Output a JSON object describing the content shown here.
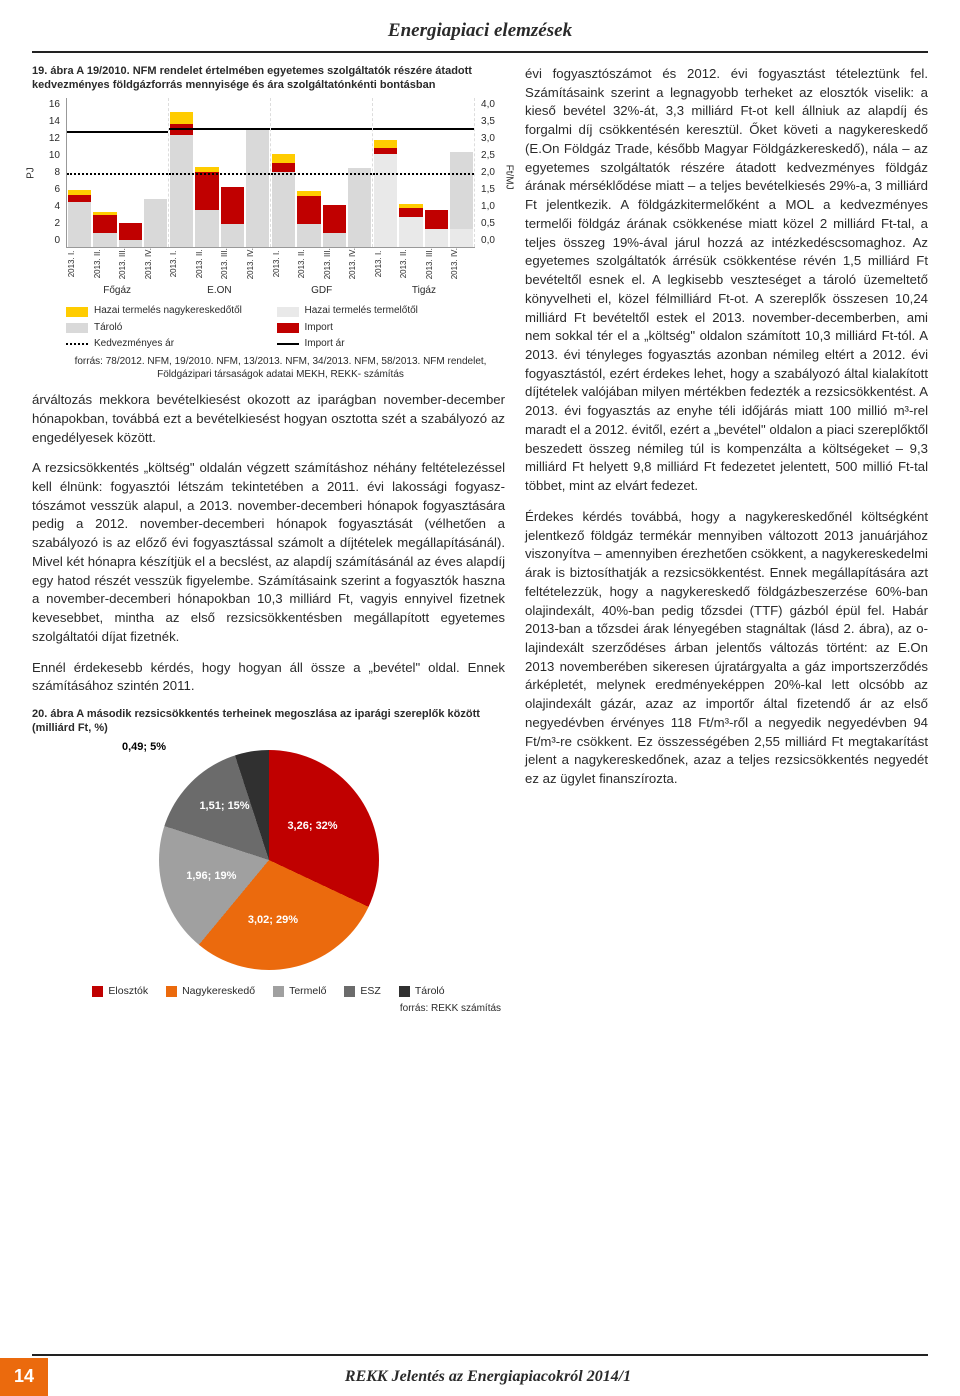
{
  "header": "Energiapiaci elemzések",
  "fig1": {
    "caption": "19. ábra A 19/2010. NFM rendelet értelmében egyetemes szolgáltatók részére átadott kedvezményes földgázforrás mennyisége és ára szolgáltatónkénti bontásban",
    "ylab_left": "PJ",
    "ylab_right": "Ft/MJ",
    "yticks_left": [
      "16",
      "14",
      "12",
      "10",
      "8",
      "6",
      "4",
      "2",
      "0"
    ],
    "yticks_right": [
      "4,0",
      "3,5",
      "3,0",
      "2,5",
      "2,0",
      "1,5",
      "1,0",
      "0,5",
      "0,0"
    ],
    "y_max_left": 16,
    "groups": [
      {
        "name": "Főgáz",
        "quarters": [
          "2013. I.",
          "2013. II.",
          "2013. III.",
          "2013. IV."
        ],
        "stacks": [
          {
            "segs": [
              {
                "c": "#d9d9d9",
                "v": 4.8
              },
              {
                "c": "#c00000",
                "v": 0.8
              },
              {
                "c": "#ffcc00",
                "v": 0.5
              }
            ]
          },
          {
            "segs": [
              {
                "c": "#d9d9d9",
                "v": 1.5
              },
              {
                "c": "#c00000",
                "v": 2.0
              },
              {
                "c": "#ffcc00",
                "v": 0.3
              }
            ]
          },
          {
            "segs": [
              {
                "c": "#d9d9d9",
                "v": 0.8
              },
              {
                "c": "#c00000",
                "v": 1.8
              },
              {
                "c": "#ffcc00",
                "v": 0.0
              }
            ]
          },
          {
            "segs": [
              {
                "c": "#d9d9d9",
                "v": 5.2
              },
              {
                "c": "#c00000",
                "v": 0.0
              },
              {
                "c": "#ffcc00",
                "v": 0.0
              }
            ]
          }
        ],
        "line": [
          3.6,
          3.1,
          2.8,
          3.0
        ],
        "dot": [
          2.1,
          2.0,
          1.9,
          2.0
        ]
      },
      {
        "name": "E.ON",
        "quarters": [
          "2013. I.",
          "2013. II.",
          "2013. III.",
          "2013. IV."
        ],
        "stacks": [
          {
            "segs": [
              {
                "c": "#d9d9d9",
                "v": 12.0
              },
              {
                "c": "#c00000",
                "v": 1.2
              },
              {
                "c": "#ffcc00",
                "v": 1.2
              }
            ]
          },
          {
            "segs": [
              {
                "c": "#d9d9d9",
                "v": 4.0
              },
              {
                "c": "#c00000",
                "v": 4.0
              },
              {
                "c": "#ffcc00",
                "v": 0.6
              }
            ]
          },
          {
            "segs": [
              {
                "c": "#d9d9d9",
                "v": 2.5
              },
              {
                "c": "#c00000",
                "v": 4.0
              },
              {
                "c": "#ffcc00",
                "v": 0.0
              }
            ]
          },
          {
            "segs": [
              {
                "c": "#d9d9d9",
                "v": 12.5
              },
              {
                "c": "#c00000",
                "v": 0.0
              },
              {
                "c": "#ffcc00",
                "v": 0.0
              }
            ]
          }
        ],
        "line": [
          3.7,
          3.2,
          2.9,
          3.1
        ],
        "dot": [
          2.1,
          2.0,
          1.9,
          2.0
        ]
      },
      {
        "name": "GDF",
        "quarters": [
          "2013. I.",
          "2013. II.",
          "2013. III.",
          "2013. IV."
        ],
        "stacks": [
          {
            "segs": [
              {
                "c": "#d9d9d9",
                "v": 8.0
              },
              {
                "c": "#c00000",
                "v": 1.0
              },
              {
                "c": "#ffcc00",
                "v": 1.0
              }
            ]
          },
          {
            "segs": [
              {
                "c": "#d9d9d9",
                "v": 2.5
              },
              {
                "c": "#c00000",
                "v": 3.0
              },
              {
                "c": "#ffcc00",
                "v": 0.5
              }
            ]
          },
          {
            "segs": [
              {
                "c": "#d9d9d9",
                "v": 1.5
              },
              {
                "c": "#c00000",
                "v": 3.0
              },
              {
                "c": "#ffcc00",
                "v": 0.0
              }
            ]
          },
          {
            "segs": [
              {
                "c": "#d9d9d9",
                "v": 8.5
              },
              {
                "c": "#c00000",
                "v": 0.0
              },
              {
                "c": "#ffcc00",
                "v": 0.0
              }
            ]
          }
        ],
        "line": [
          3.7,
          3.2,
          2.9,
          3.1
        ],
        "dot": [
          2.1,
          2.0,
          1.9,
          2.0
        ]
      },
      {
        "name": "Tigáz",
        "quarters": [
          "2013. I.",
          "2013. II.",
          "2013. III.",
          "2013. IV."
        ],
        "stacks": [
          {
            "segs": [
              {
                "c": "#e9e9e9",
                "v": 10.0
              },
              {
                "c": "#c00000",
                "v": 0.6
              },
              {
                "c": "#ffcc00",
                "v": 0.9
              }
            ]
          },
          {
            "segs": [
              {
                "c": "#e9e9e9",
                "v": 3.2
              },
              {
                "c": "#c00000",
                "v": 1.0
              },
              {
                "c": "#ffcc00",
                "v": 0.4
              }
            ]
          },
          {
            "segs": [
              {
                "c": "#e9e9e9",
                "v": 2.0
              },
              {
                "c": "#c00000",
                "v": 2.0
              },
              {
                "c": "#ffcc00",
                "v": 0.0
              }
            ]
          },
          {
            "segs": [
              {
                "c": "#e9e9e9",
                "v": 2.0
              },
              {
                "c": "#d9d9d9",
                "v": 8.2
              },
              {
                "c": "#c00000",
                "v": 0.0
              }
            ]
          }
        ],
        "line": [
          3.7,
          3.2,
          2.9,
          3.1
        ],
        "dot": [
          2.1,
          2.0,
          1.9,
          2.0
        ]
      }
    ],
    "legend": [
      {
        "swatch": "#ffcc00",
        "label": "Hazai termelés nagykereskedőtől"
      },
      {
        "swatch": "#e9e9e9",
        "label": "Hazai termelés termelőtől"
      },
      {
        "swatch": "#d9d9d9",
        "label": "Tároló"
      },
      {
        "swatch": "#c00000",
        "label": "Import"
      },
      {
        "swatch": "dot",
        "label": "Kedvezményes ár"
      },
      {
        "swatch": "line",
        "label": "Import ár"
      }
    ],
    "source": "forrás: 78/2012. NFM, 19/2010. NFM, 13/2013. NFM, 34/2013. NFM, 58/2013. NFM rendelet, Földgázipari társaságok adatai MEKH, REKK- számítás"
  },
  "left_para_1": "árváltozás mekkora bevételkiesést okozott az ipar­ágban november-december hónapokban, továbbá ezt a bevételkiesést hogyan osztotta szét a szabályo­zó az engedélyesek között.",
  "left_para_2": "A rezsicsökkentés „költség\" oldalán végzett számí­táshoz néhány feltételezéssel kell élnünk: fogyasztói létszám tekintetében a 2011. évi lakossági fogyasz­tószámot vesszük alapul, a 2013. november-decem­beri hónapok fogyasztására pedig a 2012. novem­ber-decemberi hónapok fogyasztását (vélhetően a szabályozó is az előző évi fogyasztással számolt a díjtételek megállapításánál). Mivel két hónapra ké­szítjük el a becslést, az alapdíj számításánál az éves alapdíj egy hatod részét vesszük figyelembe. Számí­tásaink szerint a fogyasztók haszna a november-de­cemberi hónapokban 10,3 milliárd Ft, vagyis ennyivel fizetnek kevesebbet, mintha az első rezsicsökkentés­ben megállapított egyetemes szolgáltatói díjat fizet­nék.",
  "left_para_3": "Ennél érdekesebb kérdés, hogy hogyan áll össze a „bevétel\" oldal. Ennek számításához szintén 2011.",
  "right_para_1": "évi fogyasztószámot és 2012. évi fo­gyasztást tételeztünk fel. Számításaink szerint a legnagyobb terheket az elosz­tók viselik: a kieső bevétel 32%-át, 3,3 milliárd Ft-ot kell állniuk az alapdíj és forgalmi díj csökkentésén keresztül. Ő­ket követi a nagykereskedő (E.On Föld­gáz Trade, később Magyar Földgázke­reskedő), nála – az egyetemes szolgálta­tók részére átadott kedvezményes föld­gáz árának mérséklődése miatt – a teljes bevételkiesés 29%-a, 3 milliárd Ft jelent­kezik. A földgázkitermelőként a MOL a kedvezményes termelői földgáz árának csökkenése miatt közel 2 milliárd Ft-tal, a teljes összeg 19%-ával járul hozzá az in­tézkedéscsomaghoz. Az egyetemes szol­gáltatók árrésük csökkentése révén 1,5 milliárd Ft bevételtől esnek el. A legkisebb veszteséget a tároló üzemeltető könyvelheti el, közel félmilliárd Ft-ot. A szereplők összesen 10,24 milliárd Ft bevételtől estek el 2013. november-decemberben, ami nem sokkal tér el a „költség\" oldalon számított 10,3 milliárd Ft-tól. A 2013. évi tényleges fogyasztás azonban némi­leg eltért a 2012. évi fogyasztástól, ezért érdekes le­het, hogy a szabályozó által kialakított díjtételek va­lójában milyen mértékben fedezték a rezsicsökken­tést. A 2013. évi fogyasztás az enyhe téli időjárás mi­att 100 millió m³-rel maradt el a 2012. évitől, ezért a „bevétel\" oldalon a piaci szereplőktől beszedett összeg némileg túl is kompenzálta a költségeket – 9,3 milliárd Ft helyett 9,8 milliárd Ft fedezetet jelen­tett, 500 millió Ft-tal többet, mint az elvárt fedezet.",
  "right_para_2": "Érdekes kérdés továbbá, hogy a nagykereskedőnél költségként jelentkező földgáz termékár mennyiben változott 2013 januárjához viszonyítva – amennyiben érezhetően csökkent, a nagykereskedelmi árak is biztosíthatják a rezsicsökkentést. Ennek megállapí­tására azt feltételezzük, hogy a nagykereskedő föld­gázbeszerzése 60%-ban olajindexált, 40%-ban pedig tőzsdei (TTF) gázból épül fel. Habár 2013-ban a tőzsdei árak lé­nyegében stagnáltak (lásd 2. ábra), az o­lajindexált szerződéses árban jelentős változás történt: az E.On 2013 novem­berében sikeresen újratárgyalta a gáz importszerződés árképletét, melynek e­redményeképpen 20%-kal lett olcsóbb az olajindexált gázár, azaz az importőr által fizetendő ár az első negyedévben ér­vényes 118 Ft/m³-ről a negyedik ne­gyedévben 94 Ft/m³-re csökkent. Ez összességében 2,55 milliárd Ft megtaka­rítást jelent a nagykereskedőnek, azaz a teljes rezsicsökkentés negyedét ez az ügylet finanszírozta.",
  "fig2": {
    "caption": "20. ábra A második rezsicsökkentés terheinek megoszlása az iparági szereplők között (milliárd Ft, %)",
    "slices": [
      {
        "label": "Elosztók",
        "value": 3.26,
        "pct": 32,
        "text": "3,26; 32%",
        "color": "#c00000"
      },
      {
        "label": "Nagykereskedő",
        "value": 3.02,
        "pct": 29,
        "text": "3,02; 29%",
        "color": "#eb6a0d"
      },
      {
        "label": "Termelő",
        "value": 1.96,
        "pct": 19,
        "text": "1,96; 19%",
        "color": "#a0a0a0"
      },
      {
        "label": "ESZ",
        "value": 1.51,
        "pct": 15,
        "text": "1,51; 15%",
        "color": "#6b6b6b"
      },
      {
        "label": "Tároló",
        "value": 0.49,
        "pct": 5,
        "text": "0,49; 5%",
        "color": "#303030"
      }
    ],
    "source": "forrás: REKK számítás"
  },
  "footer": {
    "page": "14",
    "title": "REKK Jelentés az Energiapiacokról 2014/1"
  }
}
